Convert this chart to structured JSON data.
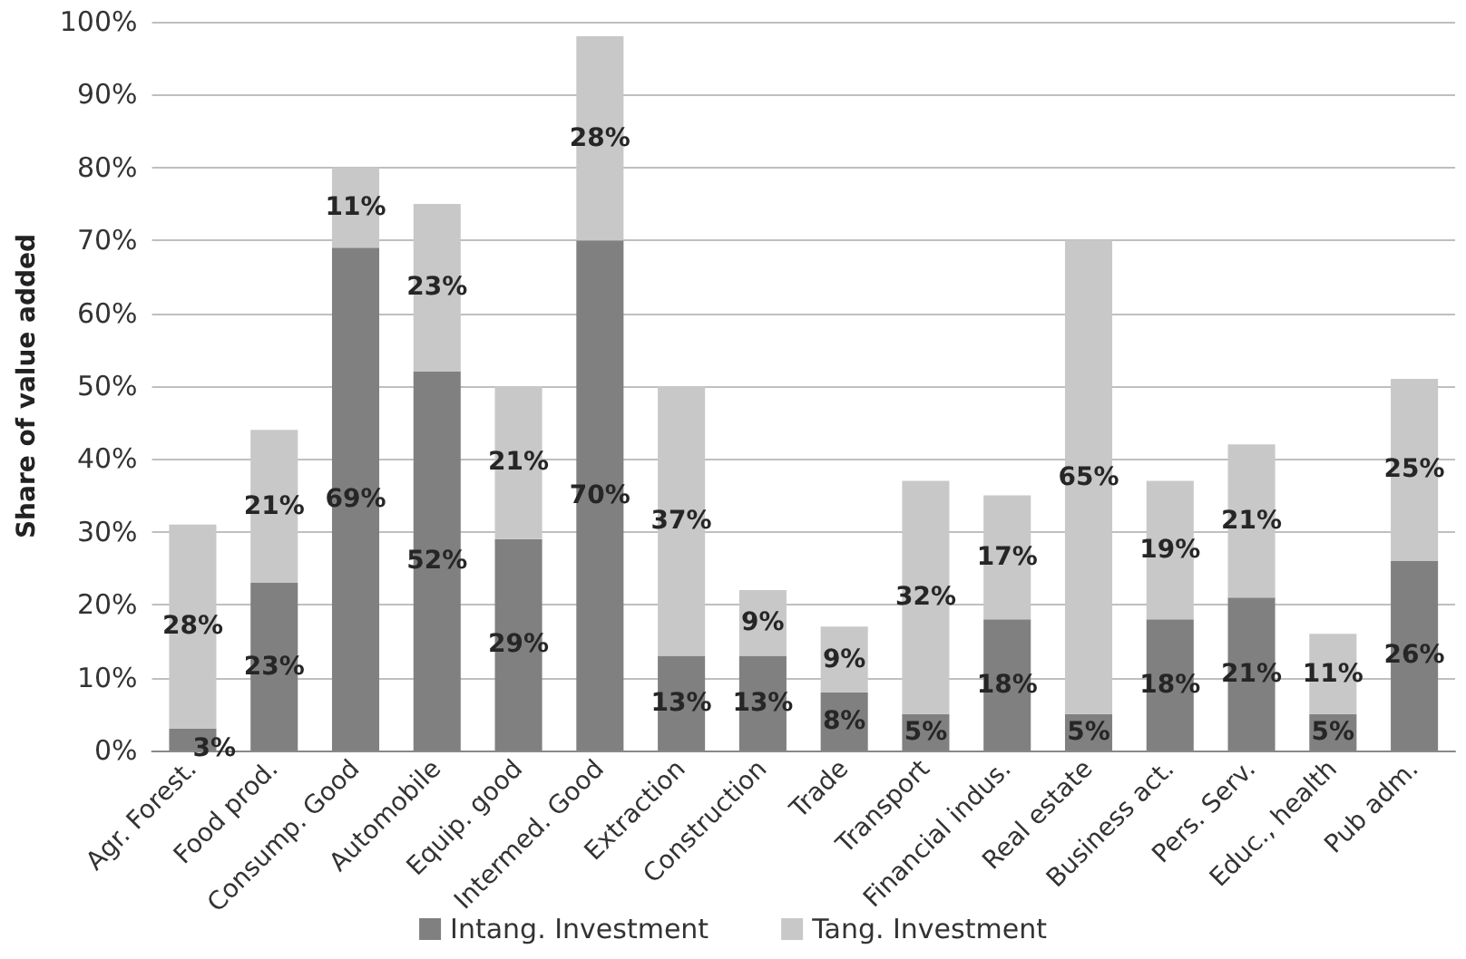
{
  "chart_data": {
    "type": "bar",
    "ylabel": "Share of value added",
    "categories": [
      "Agr. Forest.",
      "Food prod.",
      "Consump. Good",
      "Automobile",
      "Equip. good",
      "Intermed. Good",
      "Extraction",
      "Construction",
      "Trade",
      "Transport",
      "Financial indus.",
      "Real estate",
      "Business act.",
      "Pers. Serv.",
      "Educ., health",
      "Pub adm."
    ],
    "series": [
      {
        "name": "Intang. Investment",
        "color": "#808080",
        "values": [
          3,
          23,
          69,
          52,
          29,
          70,
          13,
          13,
          8,
          5,
          18,
          5,
          18,
          21,
          5,
          26
        ],
        "value_labels": [
          "3%",
          "23%",
          "69%",
          "52%",
          "29%",
          "70%",
          "13%",
          "13%",
          "8%",
          "5%",
          "18%",
          "5%",
          "18%",
          "21%",
          "5%",
          "26%"
        ]
      },
      {
        "name": "Tang. Investment",
        "color": "#c8c8c8",
        "values": [
          28,
          21,
          11,
          23,
          21,
          28,
          37,
          9,
          9,
          32,
          17,
          65,
          19,
          21,
          11,
          25
        ],
        "value_labels": [
          "28%",
          "21%",
          "11%",
          "23%",
          "21%",
          "28%",
          "37%",
          "9%",
          "9%",
          "32%",
          "17%",
          "65%",
          "19%",
          "21%",
          "11%",
          "25%"
        ]
      }
    ],
    "stacked": true,
    "ylim": [
      0,
      100
    ],
    "yticks": [
      {
        "value": 0,
        "label": "0%"
      },
      {
        "value": 10,
        "label": "10%"
      },
      {
        "value": 20,
        "label": "20%"
      },
      {
        "value": 30,
        "label": "30%"
      },
      {
        "value": 40,
        "label": "40%"
      },
      {
        "value": 50,
        "label": "50%"
      },
      {
        "value": 60,
        "label": "60%"
      },
      {
        "value": 70,
        "label": "70%"
      },
      {
        "value": 80,
        "label": "80%"
      },
      {
        "value": 90,
        "label": "90%"
      },
      {
        "value": 100,
        "label": "100%"
      }
    ],
    "grid": "y",
    "legend": "bottom"
  }
}
